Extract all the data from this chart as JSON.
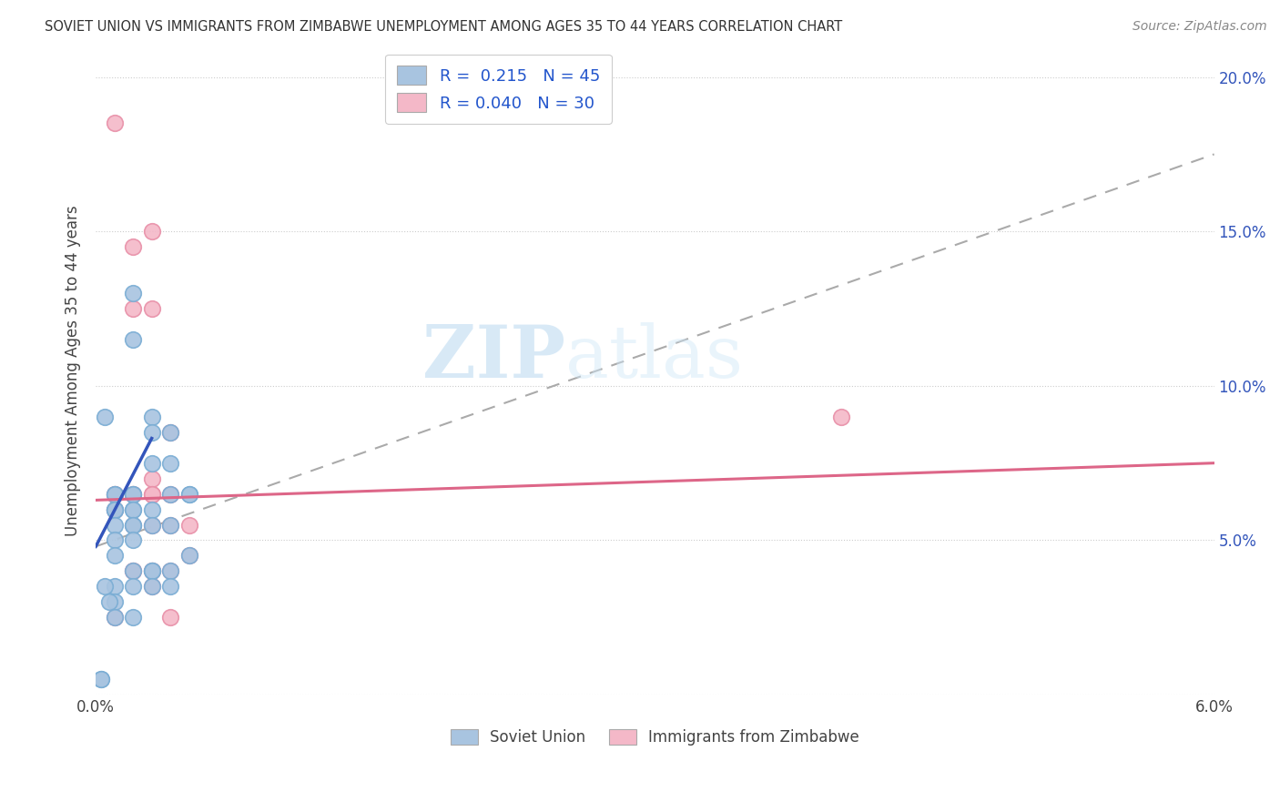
{
  "title": "SOVIET UNION VS IMMIGRANTS FROM ZIMBABWE UNEMPLOYMENT AMONG AGES 35 TO 44 YEARS CORRELATION CHART",
  "source": "Source: ZipAtlas.com",
  "ylabel": "Unemployment Among Ages 35 to 44 years",
  "xlim": [
    0.0,
    0.06
  ],
  "ylim": [
    0.0,
    0.21
  ],
  "soviet_color": "#a8c4e0",
  "soviet_edge_color": "#7aadd4",
  "zimbabwe_color": "#f4b8c8",
  "zimbabwe_edge_color": "#e890a8",
  "soviet_line_color": "#3355bb",
  "zimbabwe_line_color": "#dd6688",
  "dashed_line_color": "#aaaaaa",
  "watermark_color": "#cde4f5",
  "soviet_x": [
    0.0005,
    0.001,
    0.001,
    0.001,
    0.001,
    0.001,
    0.001,
    0.001,
    0.001,
    0.001,
    0.001,
    0.001,
    0.002,
    0.002,
    0.002,
    0.002,
    0.002,
    0.002,
    0.002,
    0.002,
    0.002,
    0.002,
    0.002,
    0.003,
    0.003,
    0.003,
    0.003,
    0.003,
    0.003,
    0.003,
    0.003,
    0.004,
    0.004,
    0.004,
    0.004,
    0.004,
    0.004,
    0.005,
    0.005,
    0.005,
    0.0003,
    0.0003,
    0.0005,
    0.0007,
    0.002
  ],
  "soviet_y": [
    0.09,
    0.065,
    0.065,
    0.06,
    0.06,
    0.06,
    0.055,
    0.05,
    0.045,
    0.035,
    0.03,
    0.025,
    0.13,
    0.115,
    0.065,
    0.065,
    0.06,
    0.06,
    0.055,
    0.055,
    0.05,
    0.04,
    0.035,
    0.09,
    0.085,
    0.075,
    0.06,
    0.055,
    0.04,
    0.04,
    0.035,
    0.085,
    0.075,
    0.065,
    0.055,
    0.04,
    0.035,
    0.065,
    0.065,
    0.045,
    0.005,
    0.005,
    0.035,
    0.03,
    0.025
  ],
  "zimbabwe_x": [
    0.001,
    0.001,
    0.001,
    0.001,
    0.001,
    0.002,
    0.002,
    0.002,
    0.002,
    0.002,
    0.002,
    0.003,
    0.003,
    0.003,
    0.003,
    0.003,
    0.003,
    0.003,
    0.004,
    0.004,
    0.004,
    0.004,
    0.004,
    0.005,
    0.005,
    0.04,
    0.002,
    0.003,
    0.003,
    0.001
  ],
  "zimbabwe_y": [
    0.185,
    0.065,
    0.065,
    0.06,
    0.06,
    0.145,
    0.125,
    0.065,
    0.055,
    0.04,
    0.04,
    0.15,
    0.125,
    0.07,
    0.065,
    0.055,
    0.04,
    0.035,
    0.085,
    0.065,
    0.055,
    0.04,
    0.025,
    0.055,
    0.045,
    0.09,
    0.065,
    0.065,
    0.04,
    0.025
  ],
  "soviet_trend_x0": 0.0,
  "soviet_trend_x1": 0.003,
  "soviet_trend_y0": 0.048,
  "soviet_trend_y1": 0.083,
  "zimbabwe_trend_x0": 0.0,
  "zimbabwe_trend_x1": 0.06,
  "zimbabwe_trend_y0": 0.063,
  "zimbabwe_trend_y1": 0.075,
  "dashed_trend_x0": 0.0,
  "dashed_trend_x1": 0.06,
  "dashed_trend_y0": 0.048,
  "dashed_trend_y1": 0.175
}
